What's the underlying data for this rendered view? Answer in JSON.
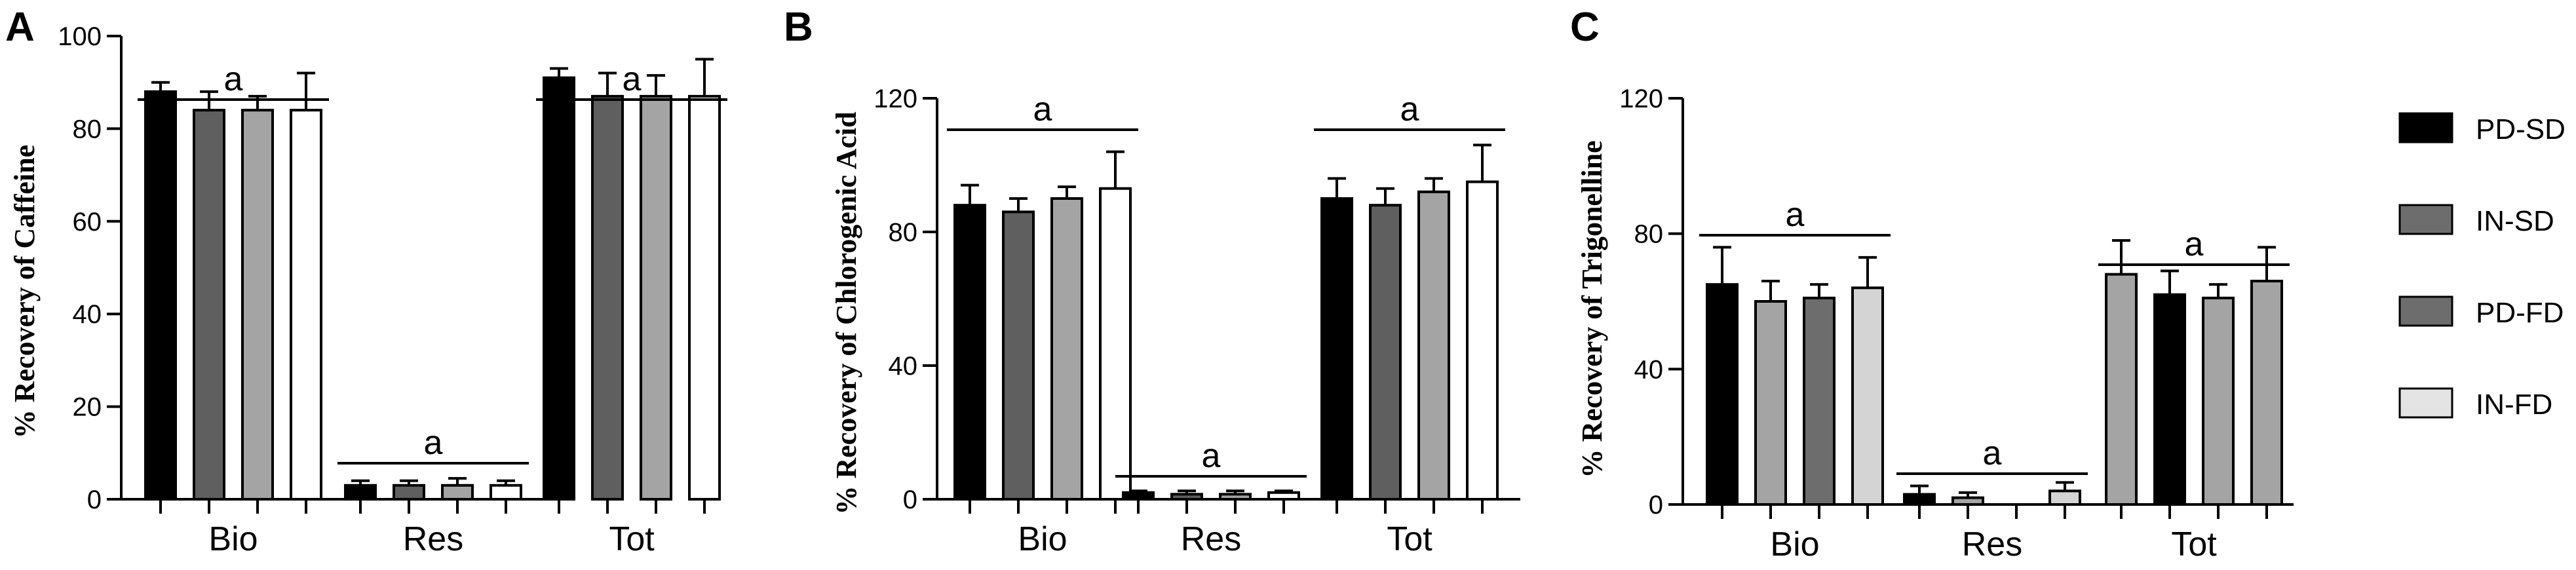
{
  "legend": [
    {
      "name": "PD-SD",
      "color": "#000000"
    },
    {
      "name": "IN-SD",
      "color": "#6d6d6d"
    },
    {
      "name": "PD-FD",
      "color": "#6d6d6d"
    },
    {
      "name": "IN-FD",
      "color": "#e4e4e4"
    }
  ],
  "chart_data": [
    {
      "type": "bar",
      "panel": "A",
      "ylabel": "% Recovery of Caffeine",
      "ylim": [
        0,
        100
      ],
      "yticks": [
        0,
        20,
        40,
        60,
        80,
        100
      ],
      "categories": [
        "Bio",
        "Res",
        "Tot"
      ],
      "series": [
        {
          "values": [
            88,
            3,
            91
          ],
          "errors": [
            2,
            1,
            2
          ],
          "colors": [
            "#000000",
            "#000000",
            "#000000"
          ]
        },
        {
          "values": [
            84,
            3,
            87
          ],
          "errors": [
            4,
            1,
            5
          ],
          "colors": [
            "#5f5f5f",
            "#5f5f5f",
            "#5f5f5f"
          ]
        },
        {
          "values": [
            84,
            3,
            87
          ],
          "errors": [
            3,
            1.5,
            4.5
          ],
          "colors": [
            "#a4a4a4",
            "#a4a4a4",
            "#a4a4a4"
          ]
        },
        {
          "values": [
            84,
            3,
            87
          ],
          "errors": [
            8,
            1,
            8
          ],
          "colors": [
            "#ffffff",
            "#ffffff",
            "#ffffff"
          ]
        }
      ],
      "significance": [
        {
          "label": "a",
          "groups": [
            "Bio",
            "Tot"
          ]
        },
        {
          "label": "a",
          "groups": [
            "Res"
          ]
        }
      ]
    },
    {
      "type": "bar",
      "panel": "B",
      "ylabel": "% Recovery of Chlorogenic Acid",
      "ylim": [
        0,
        120
      ],
      "yticks": [
        0,
        40,
        80,
        120
      ],
      "categories": [
        "Bio",
        "Res",
        "Tot"
      ],
      "series": [
        {
          "values": [
            88,
            2,
            90
          ],
          "errors": [
            6,
            0.5,
            6
          ],
          "colors": [
            "#000000",
            "#000000",
            "#000000"
          ]
        },
        {
          "values": [
            86,
            1.5,
            88
          ],
          "errors": [
            4,
            1,
            5
          ],
          "colors": [
            "#5f5f5f",
            "#5f5f5f",
            "#5f5f5f"
          ]
        },
        {
          "values": [
            90,
            1.5,
            92
          ],
          "errors": [
            3.5,
            1,
            4
          ],
          "colors": [
            "#a4a4a4",
            "#a4a4a4",
            "#a4a4a4"
          ]
        },
        {
          "values": [
            93,
            2,
            95
          ],
          "errors": [
            11,
            0.5,
            11
          ],
          "colors": [
            "#ffffff",
            "#ffffff",
            "#ffffff"
          ]
        }
      ],
      "significance": [
        {
          "label": "a",
          "groups": [
            "Bio"
          ]
        },
        {
          "label": "a",
          "groups": [
            "Res"
          ]
        },
        {
          "label": "a",
          "groups": [
            "Tot"
          ]
        }
      ]
    },
    {
      "type": "bar",
      "panel": "C",
      "ylabel": "% Recovery of Trigonelline",
      "ylim": [
        0,
        120
      ],
      "yticks": [
        0,
        40,
        80,
        120
      ],
      "categories": [
        "Bio",
        "Res",
        "Tot"
      ],
      "series": [
        {
          "values": [
            65,
            3,
            68
          ],
          "errors": [
            11,
            2.5,
            10
          ],
          "colors": [
            "#000000",
            "#000000",
            "#a4a4a4"
          ]
        },
        {
          "values": [
            60,
            2,
            62
          ],
          "errors": [
            6,
            1.5,
            7
          ],
          "colors": [
            "#a4a4a4",
            "#a4a4a4",
            "#000000"
          ]
        },
        {
          "values": [
            61,
            0,
            61
          ],
          "errors": [
            4,
            0,
            4
          ],
          "colors": [
            "#6d6d6d",
            "#6d6d6d",
            "#a4a4a4"
          ]
        },
        {
          "values": [
            64,
            4,
            66
          ],
          "errors": [
            9,
            2.5,
            10
          ],
          "colors": [
            "#d4d4d4",
            "#d4d4d4",
            "#a4a4a4"
          ]
        }
      ],
      "significance": [
        {
          "label": "a",
          "groups": [
            "Bio"
          ]
        },
        {
          "label": "a",
          "groups": [
            "Res"
          ]
        },
        {
          "label": "a",
          "groups": [
            "Tot"
          ]
        }
      ]
    }
  ]
}
